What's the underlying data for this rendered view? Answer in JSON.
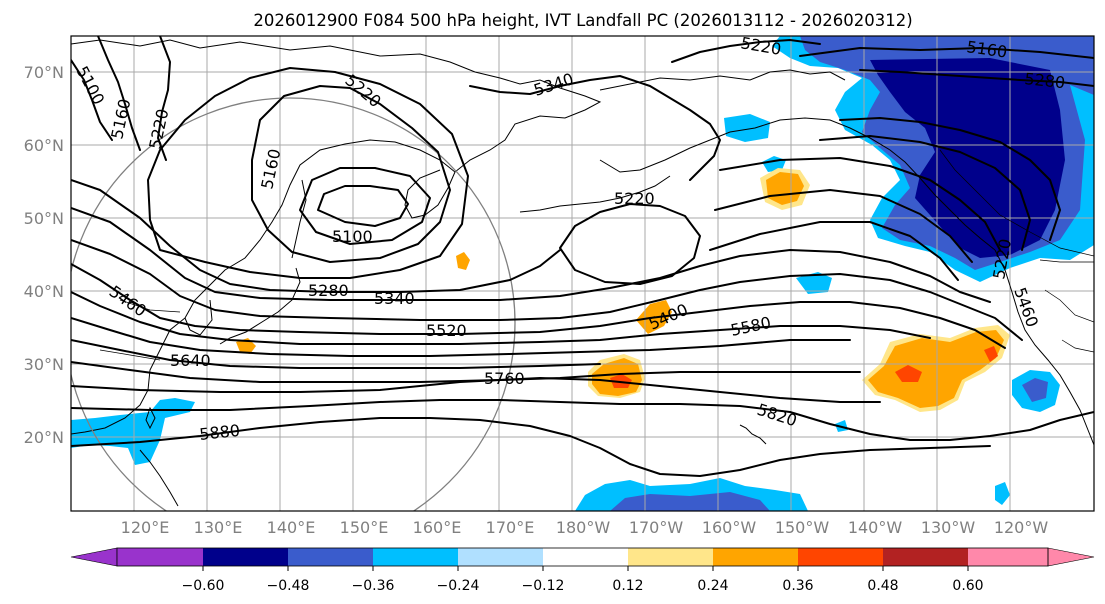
{
  "title": "2026012900 F084 500 hPa height, IVT Landfall PC (2026013112 - 2026020312)",
  "lat_labels": [
    "70°N",
    "60°N",
    "50°N",
    "40°N",
    "30°N",
    "20°N"
  ],
  "lon_labels": [
    "120°E",
    "130°E",
    "140°E",
    "150°E",
    "160°E",
    "170°E",
    "180°W",
    "170°W",
    "160°W",
    "150°W",
    "140°W",
    "130°W",
    "120°W"
  ],
  "contour_labels": [
    "5100",
    "5160",
    "5220",
    "5220",
    "5340",
    "5160",
    "5220",
    "5100",
    "5220",
    "5280",
    "5340",
    "5460",
    "5520",
    "5400",
    "5580",
    "5640",
    "5760",
    "5820",
    "5880",
    "5160",
    "5280",
    "5220",
    "5460"
  ],
  "colorbar": {
    "ticks": [
      "−0.60",
      "−0.48",
      "−0.36",
      "−0.24",
      "−0.12",
      "0.12",
      "0.24",
      "0.36",
      "0.48",
      "0.60"
    ],
    "colors": {
      "lt_-0.60": "#9933cc",
      "-0.60_-0.48": "#9933cc",
      "-0.48_-0.36": "#00008b",
      "-0.36_-0.24": "#3a5ccc",
      "-0.24_-0.12": "#00bfff",
      "-0.12_0.12": "#b0e0ff",
      "neutral": "#ffffff",
      "0.12_0.24": "#ffe68a",
      "0.24_0.36": "#ffa500",
      "0.36_0.48": "#ff4500",
      "0.48_0.60": "#b22222",
      "gt_0.60": "#ff88aa"
    }
  }
}
